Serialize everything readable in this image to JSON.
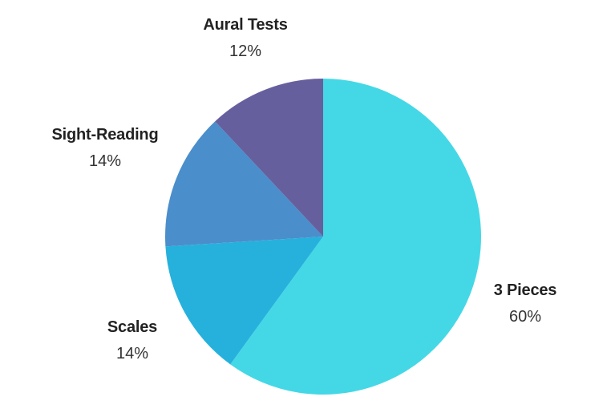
{
  "chart_data": {
    "type": "pie",
    "title": "",
    "slices": [
      {
        "label": "3 Pieces",
        "value": 60,
        "display": "60%",
        "color": "#44d8e6"
      },
      {
        "label": "Scales",
        "value": 14,
        "display": "14%",
        "color": "#26b1dd"
      },
      {
        "label": "Sight-Reading",
        "value": 14,
        "display": "14%",
        "color": "#4a8ecb"
      },
      {
        "label": "Aural Tests",
        "value": 12,
        "display": "12%",
        "color": "#665f9e"
      }
    ],
    "start": "12 o'clock",
    "direction": "clockwise"
  }
}
